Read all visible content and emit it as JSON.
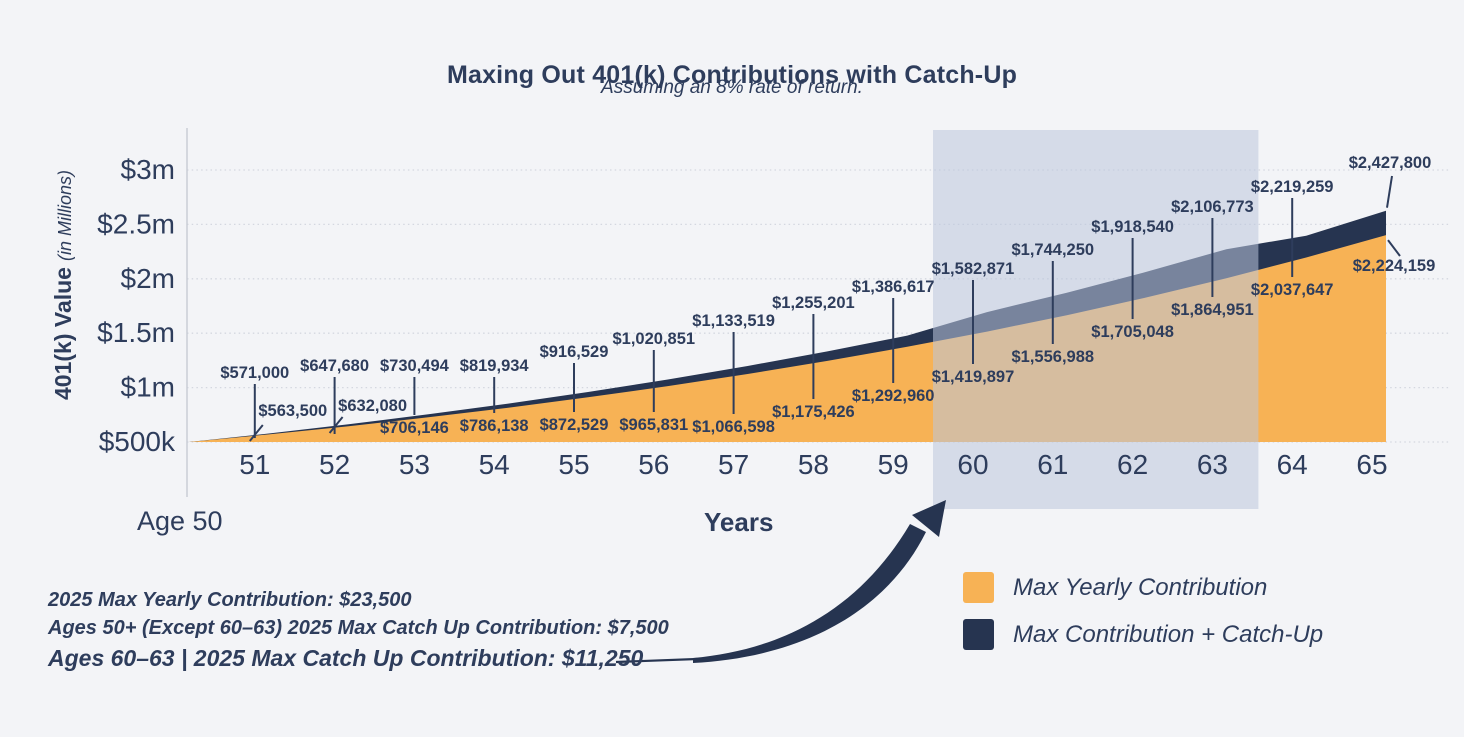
{
  "title": "Maxing Out 401(k) Contributions with Catch-Up",
  "subtitle": "Assuming an 8% rate of return.",
  "y_axis": {
    "title_bold": "401(k) Value",
    "title_italic": "(in Millions)"
  },
  "x_axis": {
    "title": "Years",
    "origin_label": "Age 50"
  },
  "legend": [
    {
      "label": "Max Yearly Contribution",
      "color": "#F7B255"
    },
    {
      "label": "Max Contribution + Catch-Up",
      "color": "#263450"
    }
  ],
  "annotations": [
    "2025 Max Yearly Contribution: $23,500",
    "Ages 50+ (Except 60–63) 2025 Max Catch Up Contribution: $7,500",
    "Ages 60–63 | 2025 Max Catch Up Contribution: $11,250"
  ],
  "colors": {
    "background": "#F3F4F7",
    "text_navy": "#2E3D5C",
    "gridline": "#D4D7E0",
    "axis_line": "#C9CDD6",
    "highlight_overlay": "rgba(188,198,220,0.55)"
  },
  "chart_data": {
    "type": "area",
    "title": "Maxing Out 401(k) Contributions with Catch-Up",
    "subtitle": "Assuming an 8% rate of return.",
    "xlabel": "Years",
    "ylabel": "401(k) Value (in Millions)",
    "x": [
      50,
      51,
      52,
      53,
      54,
      55,
      56,
      57,
      58,
      59,
      60,
      61,
      62,
      63,
      64,
      65
    ],
    "ylim": [
      500000,
      3000000
    ],
    "y_ticks": [
      {
        "value": 500000,
        "label": "$500k"
      },
      {
        "value": 1000000,
        "label": "$1m"
      },
      {
        "value": 1500000,
        "label": "$1.5m"
      },
      {
        "value": 2000000,
        "label": "$2m"
      },
      {
        "value": 2500000,
        "label": "$2.5m"
      },
      {
        "value": 3000000,
        "label": "$3m"
      }
    ],
    "series": [
      {
        "name": "Max Contribution + Catch-Up",
        "color": "#263450",
        "values": [
          500000,
          571000,
          647680,
          730494,
          819934,
          916529,
          1020851,
          1133519,
          1255201,
          1386617,
          1582871,
          1744250,
          1918540,
          2106773,
          2219259,
          2427800
        ],
        "labels": [
          "",
          "$571,000",
          "$647,680",
          "$730,494",
          "$819,934",
          "$916,529",
          "$1,020,851",
          "$1,133,519",
          "$1,255,201",
          "$1,386,617",
          "$1,582,871",
          "$1,744,250",
          "$1,918,540",
          "$2,106,773",
          "$2,219,259",
          "$2,427,800"
        ]
      },
      {
        "name": "Max Yearly Contribution",
        "color": "#F7B255",
        "values": [
          500000,
          563500,
          632080,
          706146,
          786138,
          872529,
          965831,
          1066598,
          1175426,
          1292960,
          1419897,
          1556988,
          1705048,
          1864951,
          2037647,
          2224159
        ],
        "labels": [
          "",
          "$563,500",
          "$632,080",
          "$706,146",
          "$786,138",
          "$872,529",
          "$965,831",
          "$1,066,598",
          "$1,175,426",
          "$1,292,960",
          "$1,419,897",
          "$1,556,988",
          "$1,705,048",
          "$1,864,951",
          "$2,037,647",
          "$2,224,159"
        ]
      }
    ],
    "highlight": {
      "ages": [
        60,
        63
      ]
    },
    "grid": "dotted horizontal",
    "legend_position": "bottom-right"
  }
}
